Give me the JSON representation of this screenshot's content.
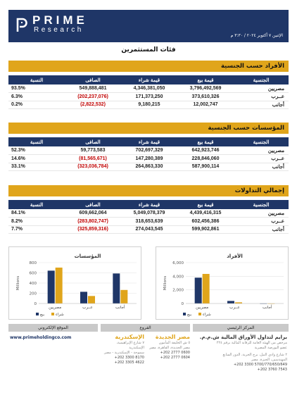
{
  "header": {
    "brand_line1": "PRIME",
    "brand_line2": "Research",
    "date": "الإثنين ٧ أكتوبر ٢٠٢٤ / ٣:٣٠ م"
  },
  "page_title": "فئات المستثمرين",
  "colors": {
    "navy": "#1f3667",
    "gold": "#e0a51b",
    "negative": "#c00000"
  },
  "sections": [
    {
      "title": "الأفراد حسب الجنسية",
      "headers": [
        "الجنسية",
        "قيمة بيع",
        "قيمة شراء",
        "الصافى",
        "النسبة"
      ],
      "rows": [
        [
          "مصريين",
          "3,796,492,569",
          "4,346,381,050",
          "549,888,481",
          "93.5%"
        ],
        [
          "عــرب",
          "373,610,326",
          "171,373,250",
          "(202,237,076)",
          "6.3%"
        ],
        [
          "أجانب",
          "12,002,747",
          "9,180,215",
          "(2,822,532)",
          "0.2%"
        ]
      ]
    },
    {
      "title": "المؤسسات حسب الجنسية",
      "headers": [
        "الجنسية",
        "قيمة بيع",
        "قيمة شراء",
        "الصافى",
        "النسبة"
      ],
      "rows": [
        [
          "مصريين",
          "642,923,746",
          "702,697,329",
          "59,773,583",
          "52.3%"
        ],
        [
          "عــرب",
          "228,846,060",
          "147,280,389",
          "(81,565,671)",
          "14.6%"
        ],
        [
          "أجانب",
          "587,900,114",
          "264,863,330",
          "(323,036,784)",
          "33.1%"
        ]
      ]
    },
    {
      "title": "إجمالي التداولات",
      "headers": [
        "الجنسية",
        "قيمة بيع",
        "قيمة شراء",
        "الصافى",
        "النسبة"
      ],
      "rows": [
        [
          "مصريين",
          "4,439,416,315",
          "5,049,078,379",
          "609,662,064",
          "84.1%"
        ],
        [
          "عــرب",
          "602,456,386",
          "318,653,639",
          "(283,802,747)",
          "8.2%"
        ],
        [
          "أجانب",
          "599,902,861",
          "274,043,545",
          "(325,859,316)",
          "7.7%"
        ]
      ]
    }
  ],
  "chart_data": [
    {
      "type": "bar",
      "title": "المؤسسات",
      "categories": [
        "مصريين",
        "عــرب",
        "أجانب"
      ],
      "ylabel": "Millions",
      "ylim": [
        0,
        800
      ],
      "yticks": [
        "0",
        "200",
        "400",
        "600",
        "800"
      ],
      "series": [
        {
          "name": "بيع",
          "color": "#1f3667",
          "values": [
            643,
            229,
            588
          ]
        },
        {
          "name": "شراء",
          "color": "#e0a51b",
          "values": [
            703,
            147,
            265
          ]
        }
      ]
    },
    {
      "type": "bar",
      "title": "الأفراد",
      "categories": [
        "مصريين",
        "عــرب",
        "أجانب"
      ],
      "ylabel": "Millions",
      "ylim": [
        0,
        6000
      ],
      "yticks": [
        "0",
        "2,000",
        "4,000",
        "6,000"
      ],
      "series": [
        {
          "name": "بيع",
          "color": "#1f3667",
          "values": [
            3796,
            374,
            12
          ]
        },
        {
          "name": "شراء",
          "color": "#e0a51b",
          "values": [
            4346,
            171,
            9
          ]
        }
      ]
    }
  ],
  "footer": {
    "website_title": "الموقع الإلكتروني",
    "branches_title": "الفروع",
    "hq_title": "المركز الرئيسي",
    "website": "www.primeholdingco.com",
    "alex": {
      "name": "الإسكندرية",
      "l1": "٧ شارع الإبراهيمية، الإسكندرية",
      "l2": "سموحة - الإسكندرية - مصر",
      "p1": "+202 3300 8170",
      "p2": "+202 3305 4622"
    },
    "newcairo": {
      "name": "مصر الجديدة",
      "l1": "٥ ش الخليفة المأمون",
      "l2": "مصر الجديدة، القاهرة، مصر",
      "p1": "+202 2777 0600",
      "p2": "+202 2777 0604"
    },
    "hq": {
      "name": "برايم لتداول الأوراق المالية ش.م.م.",
      "l1": "مرخص من الهيئة العامة للرقابة المالية برقم ٢٢٤",
      "l2": "عضو البورصة المصرية",
      "l3": "٢ شارع وادي النيل، برج الحرية، الدور السابع",
      "l4": "المهندسين، الجيزة، مصر",
      "p1": "+202 3300 5700/770/650/649",
      "p2": "+202 3760 7543"
    }
  }
}
